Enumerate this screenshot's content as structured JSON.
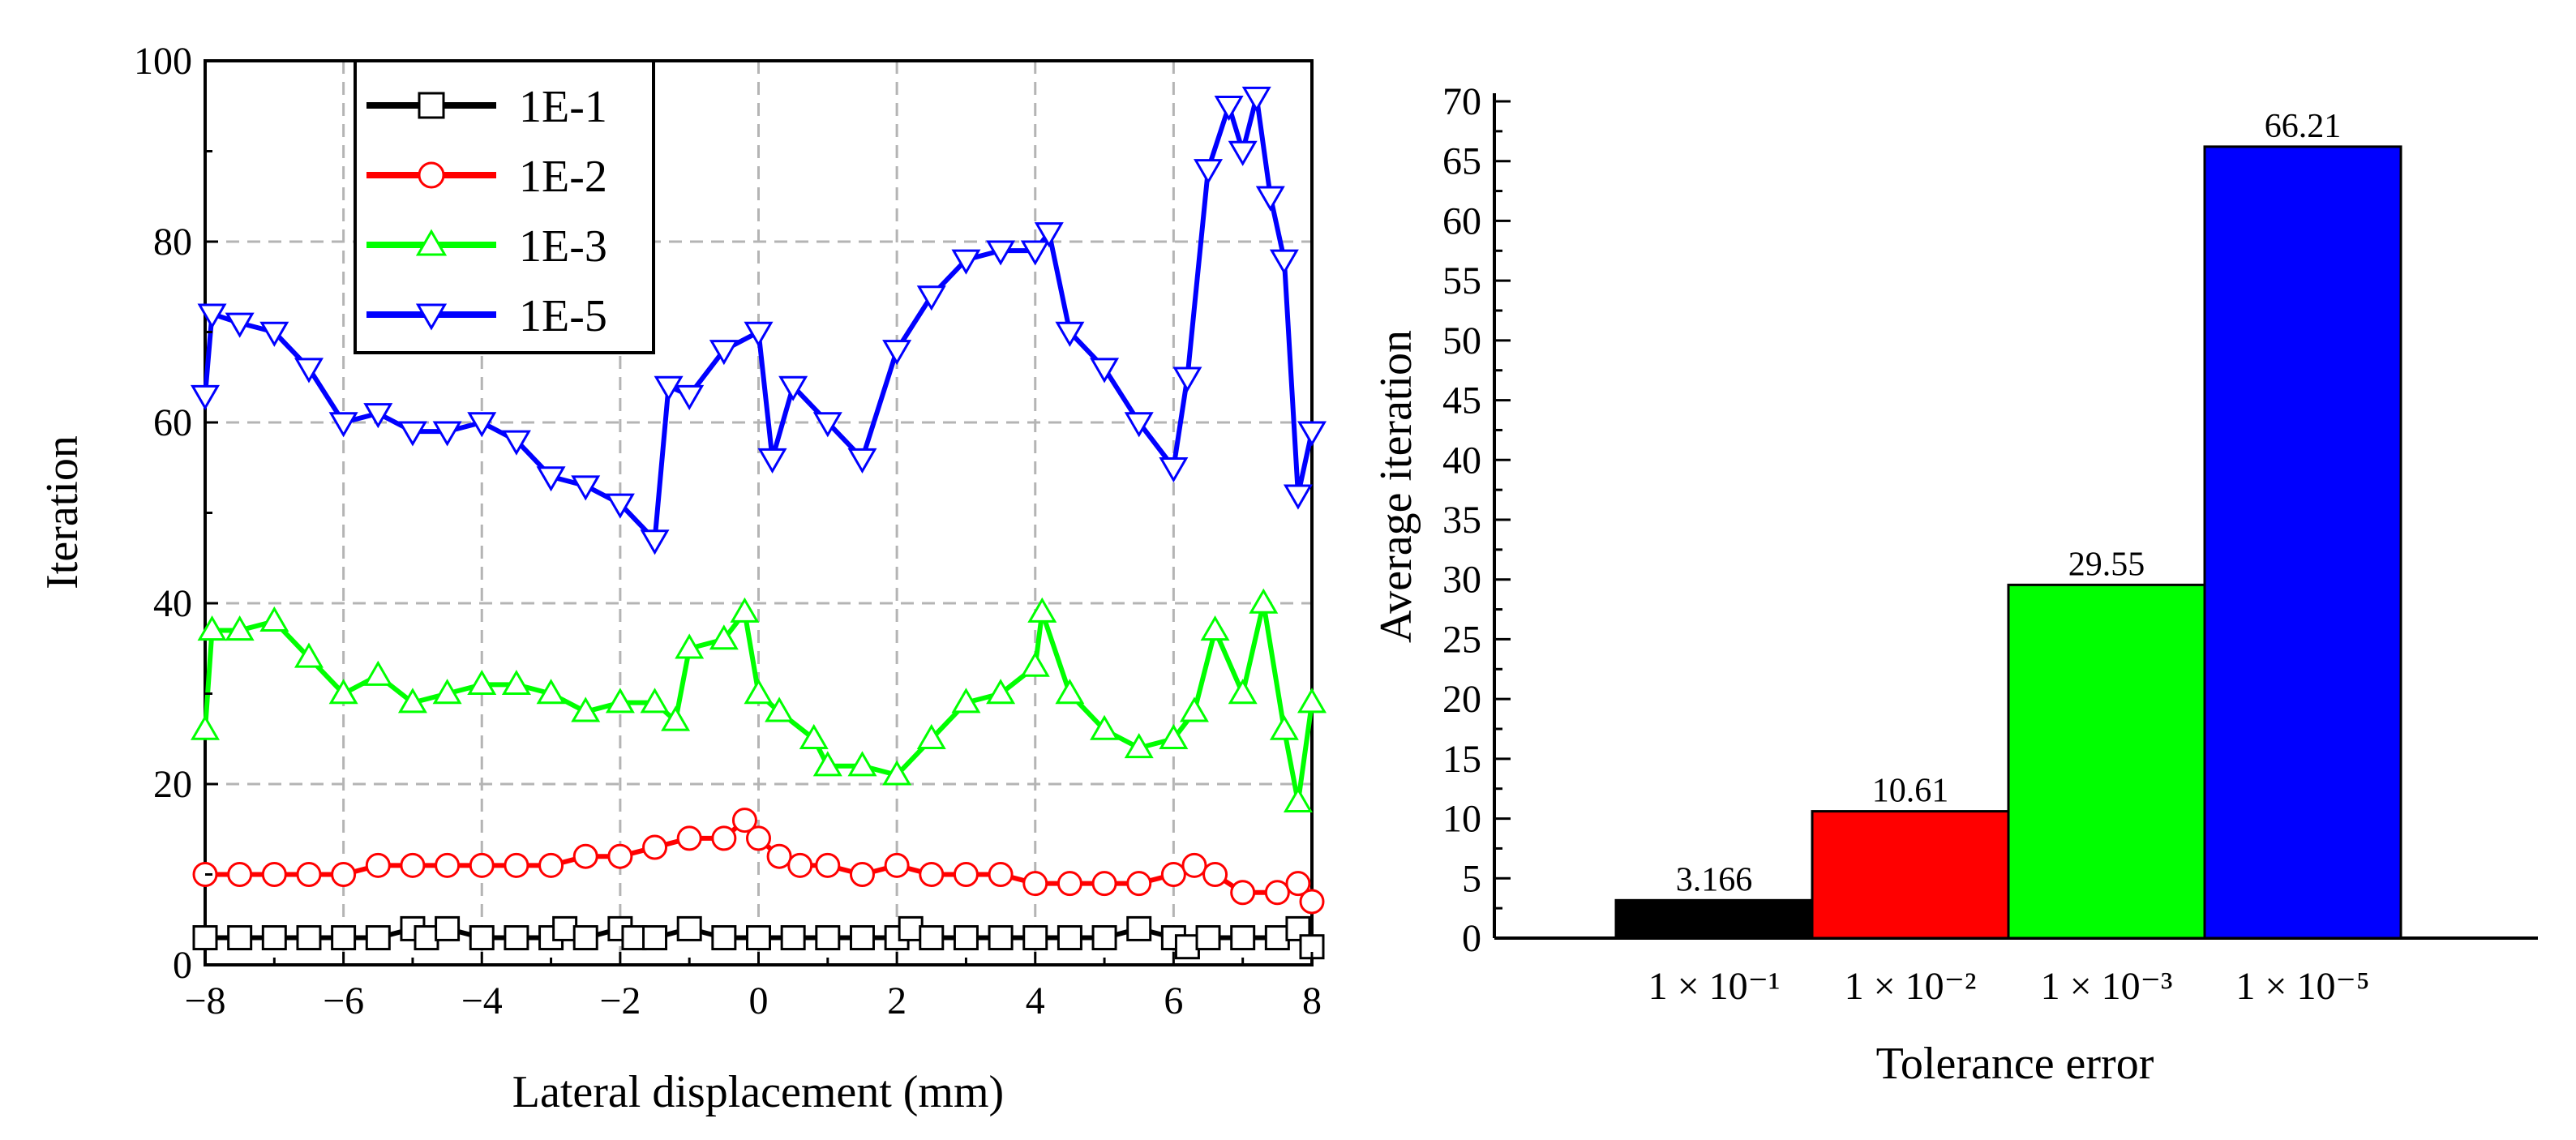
{
  "chart_data": [
    {
      "type": "line",
      "xlabel": "Lateral displacement (mm)",
      "ylabel": "Iteration",
      "xlim": [
        -8,
        8
      ],
      "ylim": [
        0,
        100
      ],
      "xticks": [
        -8,
        -6,
        -4,
        -2,
        0,
        2,
        4,
        6,
        8
      ],
      "yticks": [
        0,
        20,
        40,
        60,
        80,
        100
      ],
      "grid": true,
      "legend_position": "top-left",
      "series": [
        {
          "name": "1E-1",
          "color": "#000000",
          "marker": "square",
          "x": [
            -8,
            -7.5,
            -7,
            -6.5,
            -6,
            -5.5,
            -5,
            -4.8,
            -4.5,
            -4,
            -3.5,
            -3,
            -2.8,
            -2.5,
            -2,
            -1.8,
            -1.5,
            -1,
            -0.5,
            0,
            0.5,
            1,
            1.5,
            2,
            2.2,
            2.5,
            3,
            3.5,
            4,
            4.5,
            5,
            5.5,
            6,
            6.2,
            6.5,
            7,
            7.5,
            7.8,
            8
          ],
          "y": [
            3,
            3,
            3,
            3,
            3,
            3,
            4,
            3,
            4,
            3,
            3,
            3,
            4,
            3,
            4,
            3,
            3,
            4,
            3,
            3,
            3,
            3,
            3,
            3,
            4,
            3,
            3,
            3,
            3,
            3,
            3,
            4,
            3,
            2,
            3,
            3,
            3,
            4,
            2
          ]
        },
        {
          "name": "1E-2",
          "color": "#ff0000",
          "marker": "circle",
          "x": [
            -8,
            -7.5,
            -7,
            -6.5,
            -6,
            -5.5,
            -5,
            -4.5,
            -4,
            -3.5,
            -3,
            -2.5,
            -2,
            -1.5,
            -1,
            -0.5,
            -0.2,
            0,
            0.3,
            0.6,
            1,
            1.5,
            2,
            2.5,
            3,
            3.5,
            4,
            4.5,
            5,
            5.5,
            6,
            6.3,
            6.6,
            7,
            7.5,
            7.8,
            8
          ],
          "y": [
            10,
            10,
            10,
            10,
            10,
            11,
            11,
            11,
            11,
            11,
            11,
            12,
            12,
            13,
            14,
            14,
            16,
            14,
            12,
            11,
            11,
            10,
            11,
            10,
            10,
            10,
            9,
            9,
            9,
            9,
            10,
            11,
            10,
            8,
            8,
            9,
            7
          ]
        },
        {
          "name": "1E-3",
          "color": "#00ff00",
          "marker": "triangle-up",
          "x": [
            -8,
            -7.9,
            -7.5,
            -7,
            -6.5,
            -6,
            -5.5,
            -5,
            -4.5,
            -4,
            -3.5,
            -3,
            -2.5,
            -2,
            -1.5,
            -1.2,
            -1,
            -0.5,
            -0.2,
            0,
            0.3,
            0.8,
            1,
            1.5,
            2,
            2.5,
            3,
            3.5,
            4,
            4.1,
            4.5,
            5,
            5.5,
            6,
            6.3,
            6.6,
            7,
            7.3,
            7.6,
            7.8,
            8
          ],
          "y": [
            26,
            37,
            37,
            38,
            34,
            30,
            32,
            29,
            30,
            31,
            31,
            30,
            28,
            29,
            29,
            27,
            35,
            36,
            39,
            30,
            28,
            25,
            22,
            22,
            21,
            25,
            29,
            30,
            33,
            39,
            30,
            26,
            24,
            25,
            28,
            37,
            30,
            40,
            26,
            18,
            29
          ]
        },
        {
          "name": "1E-5",
          "color": "#0000ff",
          "marker": "triangle-down",
          "x": [
            -8,
            -7.9,
            -7.5,
            -7,
            -6.5,
            -6,
            -5.5,
            -5,
            -4.5,
            -4,
            -3.5,
            -3,
            -2.5,
            -2,
            -1.5,
            -1.3,
            -1,
            -0.5,
            0,
            0.2,
            0.5,
            1,
            1.5,
            2,
            2.5,
            3,
            3.5,
            4,
            4.2,
            4.5,
            5,
            5.5,
            6,
            6.2,
            6.5,
            6.8,
            7,
            7.2,
            7.4,
            7.6,
            7.8,
            8
          ],
          "y": [
            63,
            72,
            71,
            70,
            66,
            60,
            61,
            59,
            59,
            60,
            58,
            54,
            53,
            51,
            47,
            64,
            63,
            68,
            70,
            56,
            64,
            60,
            56,
            68,
            74,
            78,
            79,
            79,
            81,
            70,
            66,
            60,
            55,
            65,
            88,
            95,
            90,
            96,
            85,
            78,
            52,
            59
          ]
        }
      ]
    },
    {
      "type": "bar",
      "xlabel": "Tolerance error",
      "ylabel": "Average iteration",
      "ylim": [
        0,
        70
      ],
      "yticks": [
        0,
        5,
        10,
        15,
        20,
        25,
        30,
        35,
        40,
        45,
        50,
        55,
        60,
        65,
        70
      ],
      "grid": false,
      "categories": [
        "1 × 10⁻¹",
        "1 × 10⁻²",
        "1 × 10⁻³",
        "1 × 10⁻⁵"
      ],
      "values": [
        3.166,
        10.61,
        29.55,
        66.21
      ],
      "data_labels": [
        "3.166",
        "10.61",
        "29.55",
        "66.21"
      ],
      "colors": [
        "#000000",
        "#ff0000",
        "#00ff00",
        "#0000ff"
      ]
    }
  ]
}
